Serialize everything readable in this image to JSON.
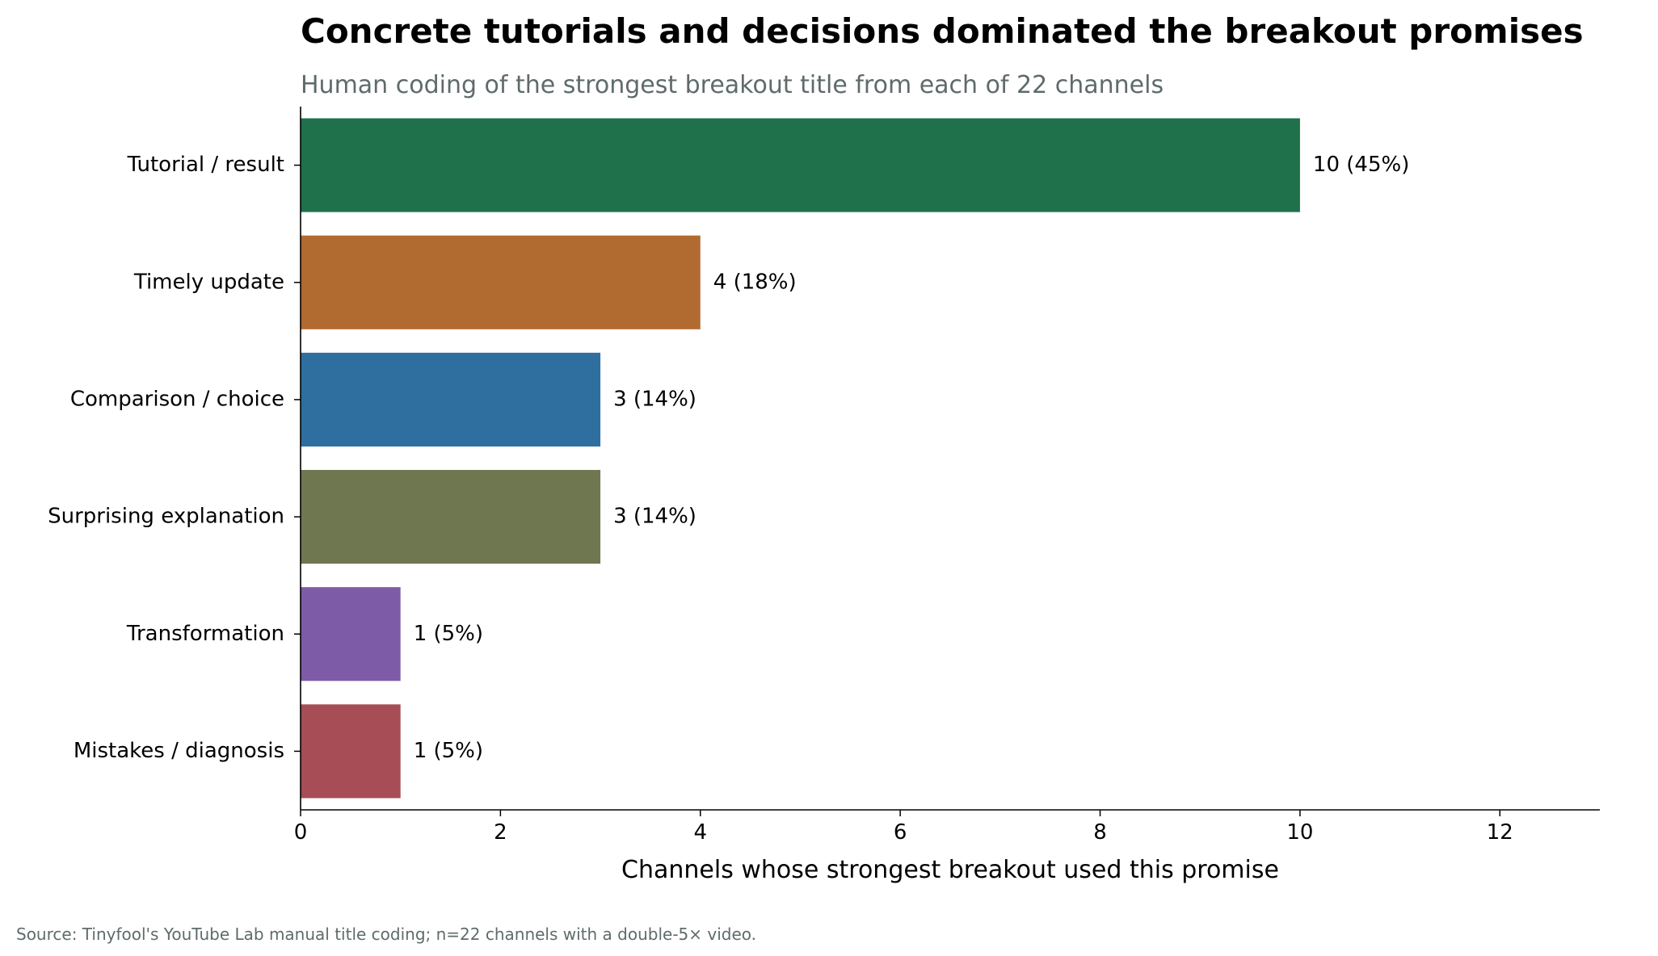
{
  "chart_data": {
    "type": "bar",
    "orientation": "horizontal",
    "title": "Concrete tutorials and decisions dominated the breakout promises",
    "subtitle": "Human coding of the strongest breakout title from each of 22 channels",
    "xlabel": "Channels whose strongest breakout used this promise",
    "ylabel": "",
    "xlim": [
      0,
      13
    ],
    "xticks": [
      0,
      2,
      4,
      6,
      8,
      10,
      12
    ],
    "grid": false,
    "categories": [
      "Tutorial / result",
      "Timely update",
      "Comparison / choice",
      "Surprising explanation",
      "Transformation",
      "Mistakes / diagnosis"
    ],
    "values": [
      10,
      4,
      3,
      3,
      1,
      1
    ],
    "value_labels": [
      "10  (45%)",
      "4  (18%)",
      "3  (14%)",
      "3  (14%)",
      "1  (5%)",
      "1  (5%)"
    ],
    "colors": [
      "#1f714c",
      "#b16a30",
      "#2e6fa0",
      "#6f7750",
      "#7d5ba6",
      "#a64d55"
    ],
    "source": "Source: Tinyfool's YouTube Lab manual title coding; n=22 channels with a double-5× video."
  }
}
